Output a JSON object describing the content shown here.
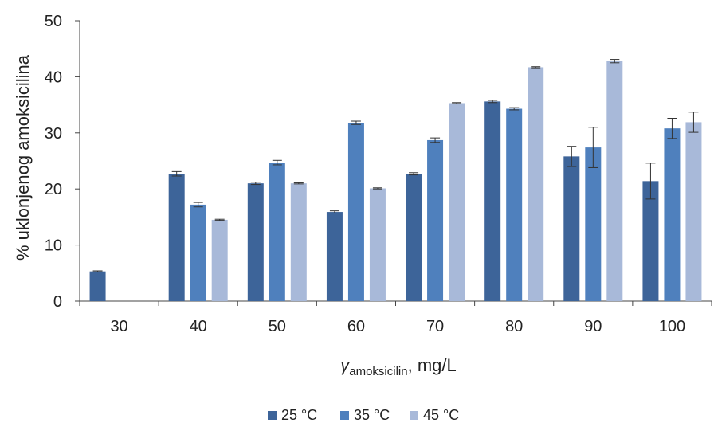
{
  "chart_data": {
    "type": "bar",
    "xlabel_symbol": "γ",
    "xlabel_subscript": "amoksicilin",
    "xlabel_suffix": ", mg/L",
    "ylabel": "% uklonjenog amoksicilina",
    "ylim": [
      0,
      50
    ],
    "yticks": [
      "0",
      "10",
      "20",
      "30",
      "40",
      "50"
    ],
    "categories": [
      "30",
      "40",
      "50",
      "60",
      "70",
      "80",
      "90",
      "100"
    ],
    "legend_position": "bottom",
    "grid": false,
    "series": [
      {
        "name": "25 °C",
        "color": "#3d6499",
        "values": [
          5.3,
          22.7,
          21.0,
          15.9,
          22.7,
          35.6,
          25.8,
          21.4
        ],
        "errors": [
          0.1,
          0.4,
          0.2,
          0.2,
          0.2,
          0.2,
          1.8,
          3.2
        ]
      },
      {
        "name": "35 °C",
        "color": "#4f80bd",
        "values": [
          null,
          17.2,
          24.7,
          31.8,
          28.7,
          34.3,
          27.4,
          30.8
        ],
        "errors": [
          null,
          0.4,
          0.4,
          0.3,
          0.4,
          0.2,
          3.6,
          1.8
        ]
      },
      {
        "name": "45 °C",
        "color": "#a8b9d9",
        "values": [
          null,
          14.5,
          21.0,
          20.1,
          35.3,
          41.7,
          42.8,
          31.9
        ],
        "errors": [
          null,
          0.1,
          0.1,
          0.1,
          0.1,
          0.1,
          0.3,
          1.8
        ]
      }
    ]
  }
}
